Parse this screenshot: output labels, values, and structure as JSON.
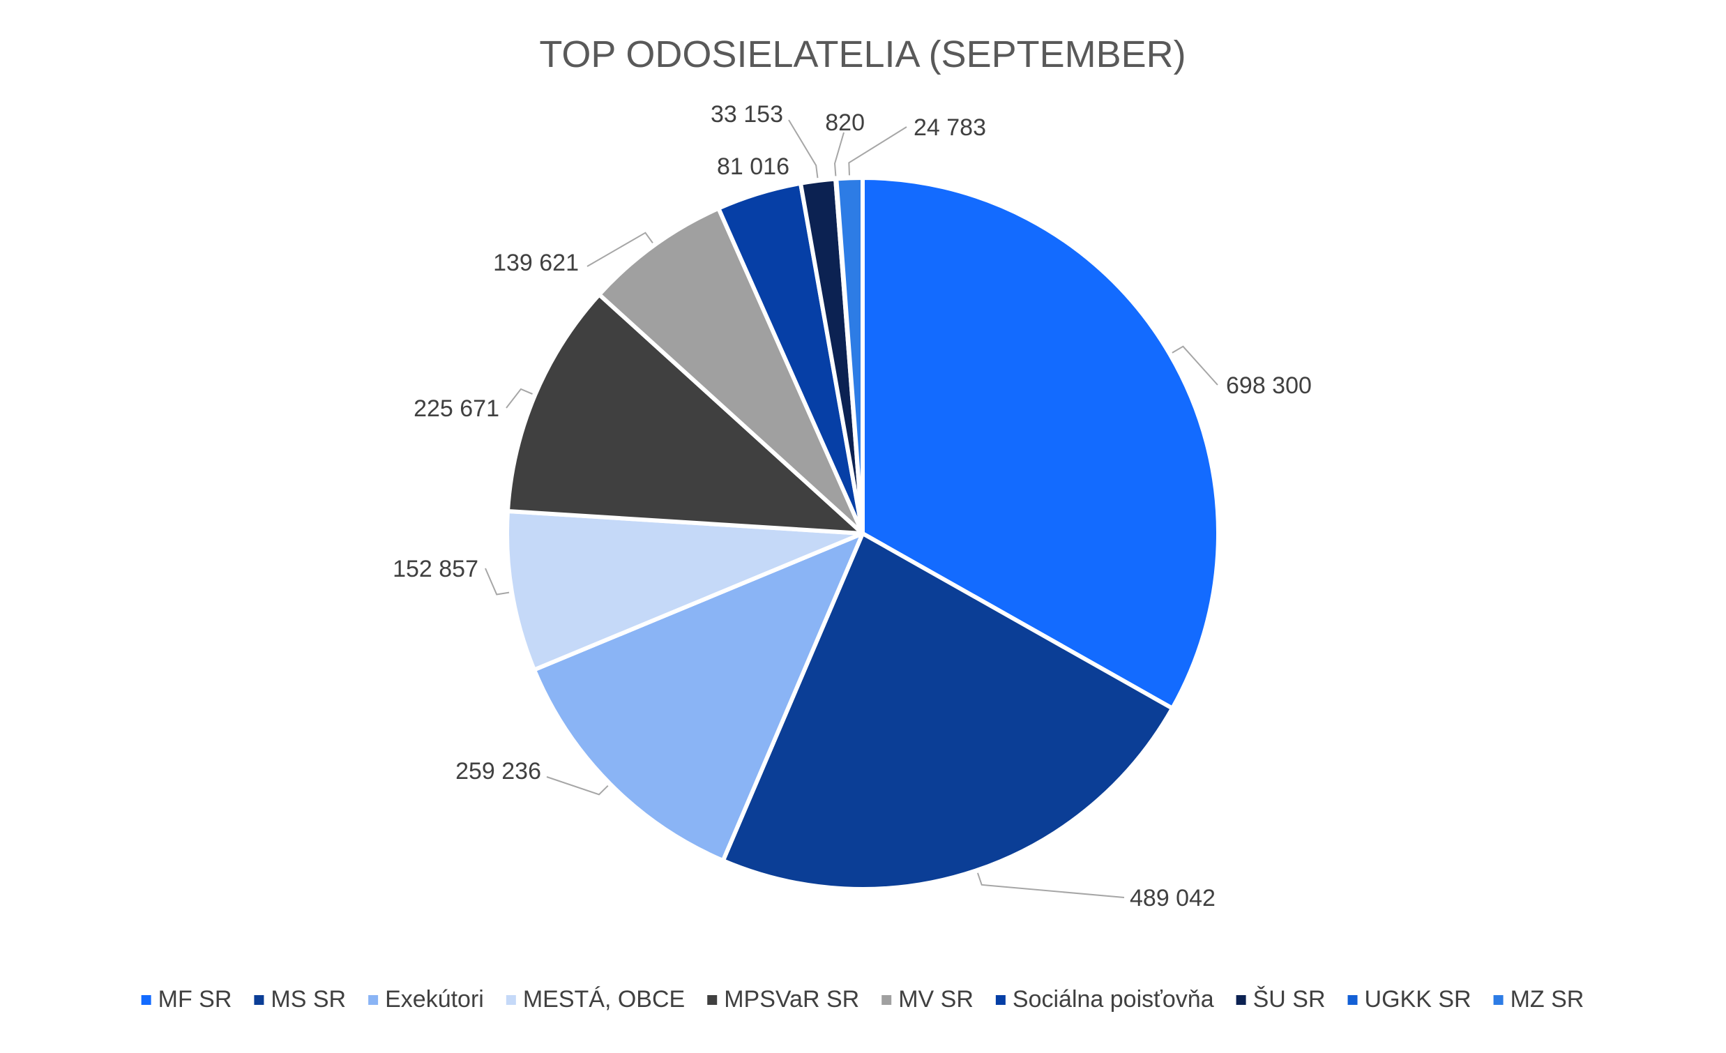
{
  "chart_data": {
    "type": "pie",
    "title": "TOP ODOSIELATELIA (SEPTEMBER)",
    "legend_position": "bottom",
    "slices": [
      {
        "name": "MF SR",
        "value": 698300,
        "label": "698 300",
        "color": "#136BFF"
      },
      {
        "name": "MS SR",
        "value": 489042,
        "label": "489 042",
        "color": "#0B3E96"
      },
      {
        "name": "Exekútori",
        "value": 259236,
        "label": "259 236",
        "color": "#8AB4F5"
      },
      {
        "name": "MESTÁ, OBCE",
        "value": 152857,
        "label": "152 857",
        "color": "#C5D9F8"
      },
      {
        "name": "MPSVaR SR",
        "value": 225671,
        "label": "225 671",
        "color": "#404040"
      },
      {
        "name": "MV SR",
        "value": 139621,
        "label": "139 621",
        "color": "#A0A0A0"
      },
      {
        "name": "Sociálna poisťovňa",
        "value": 81016,
        "label": "81 016",
        "color": "#063FA6"
      },
      {
        "name": "ŠU SR",
        "value": 33153,
        "label": "33 153",
        "color": "#0C2252"
      },
      {
        "name": "UGKK SR",
        "value": 820,
        "label": "820",
        "color": "#1360D6"
      },
      {
        "name": "MZ SR",
        "value": 24783,
        "label": "24 783",
        "color": "#2D7CE5"
      }
    ]
  }
}
